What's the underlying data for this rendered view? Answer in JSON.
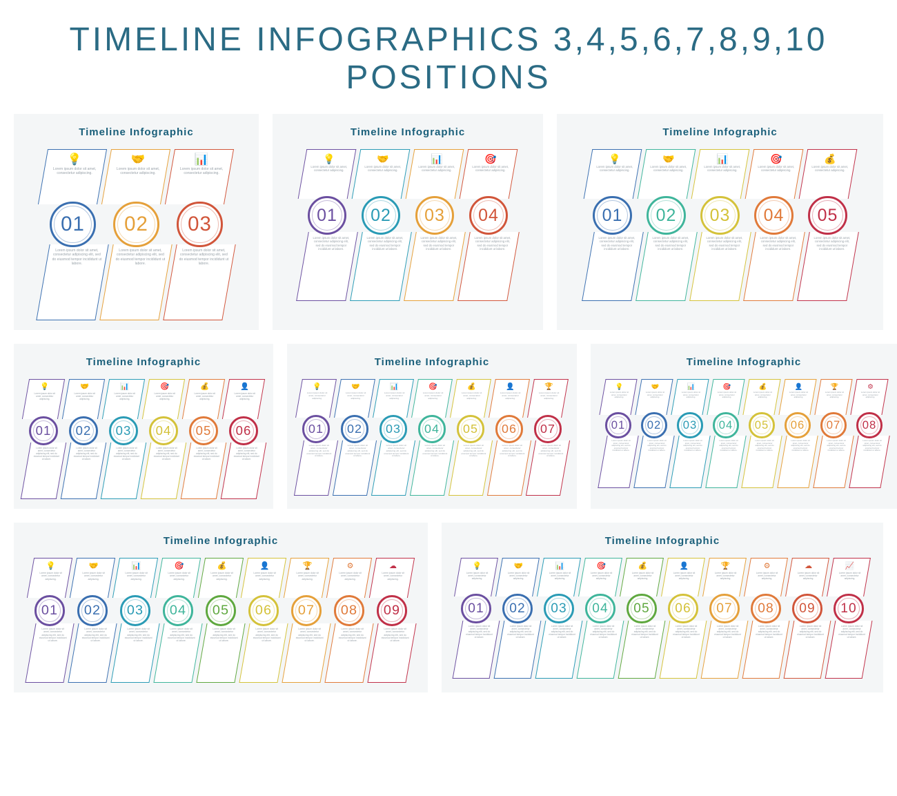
{
  "title": "TIMELINE  INFOGRAPHICS  3,4,5,6,7,8,9,10  POSITIONS",
  "title_color": "#2b6b84",
  "panel_bg": "#f4f6f7",
  "panel_title": "Timeline  Infographic",
  "panel_title_color": "#1a5f7a",
  "lorem_short": "Lorem ipsum dolor sit amet, consectetur adipiscing.",
  "lorem_long": "Lorem ipsum dolor sit amet, consectetur adipiscing elit, sed do eiusmod tempor incididunt ut labore.",
  "number_prefix": "0",
  "icons": [
    "💡",
    "🤝",
    "📊",
    "🎯",
    "💰",
    "👤",
    "🏆",
    "⚙",
    "☁",
    "📈"
  ],
  "colors10": [
    "#6b4fa0",
    "#3a6fb0",
    "#2a9bb5",
    "#3fb59b",
    "#5fa83f",
    "#d4c23a",
    "#e5a03a",
    "#e07a3a",
    "#d1553a",
    "#c03048"
  ],
  "rows": [
    {
      "panels": [
        {
          "count": 3,
          "step_w": 92,
          "top_h": 80,
          "bot_h": 110,
          "colors": [
            "#3a6fb0",
            "#e5a03a",
            "#d1553a"
          ]
        },
        {
          "count": 4,
          "step_w": 78,
          "top_h": 72,
          "bot_h": 100,
          "colors": [
            "#6b4fa0",
            "#2a9bb5",
            "#e5a03a",
            "#d1553a"
          ]
        },
        {
          "count": 5,
          "step_w": 78,
          "top_h": 72,
          "bot_h": 100,
          "colors": [
            "#3a6fb0",
            "#3fb59b",
            "#d4c23a",
            "#e07a3a",
            "#c03048"
          ]
        }
      ]
    },
    {
      "panels": [
        {
          "count": 6,
          "step_w": 58,
          "top_h": 58,
          "bot_h": 82,
          "colors": [
            "#6b4fa0",
            "#3a6fb0",
            "#2a9bb5",
            "#d4c23a",
            "#e07a3a",
            "#c03048"
          ]
        },
        {
          "count": 7,
          "step_w": 56,
          "top_h": 56,
          "bot_h": 80,
          "colors": [
            "#6b4fa0",
            "#3a6fb0",
            "#2a9bb5",
            "#3fb59b",
            "#d4c23a",
            "#e07a3a",
            "#c03048"
          ]
        },
        {
          "count": 8,
          "step_w": 52,
          "top_h": 52,
          "bot_h": 76,
          "colors": [
            "#6b4fa0",
            "#3a6fb0",
            "#2a9bb5",
            "#3fb59b",
            "#d4c23a",
            "#e5a03a",
            "#e07a3a",
            "#c03048"
          ]
        }
      ]
    },
    {
      "panels": [
        {
          "count": 9,
          "step_w": 62,
          "top_h": 58,
          "bot_h": 86,
          "colors": [
            "#6b4fa0",
            "#3a6fb0",
            "#2a9bb5",
            "#3fb59b",
            "#5fa83f",
            "#d4c23a",
            "#e5a03a",
            "#e07a3a",
            "#c03048"
          ]
        },
        {
          "count": 10,
          "step_w": 60,
          "top_h": 56,
          "bot_h": 84,
          "colors": [
            "#6b4fa0",
            "#3a6fb0",
            "#2a9bb5",
            "#3fb59b",
            "#5fa83f",
            "#d4c23a",
            "#e5a03a",
            "#e07a3a",
            "#d1553a",
            "#c03048"
          ]
        }
      ]
    }
  ]
}
